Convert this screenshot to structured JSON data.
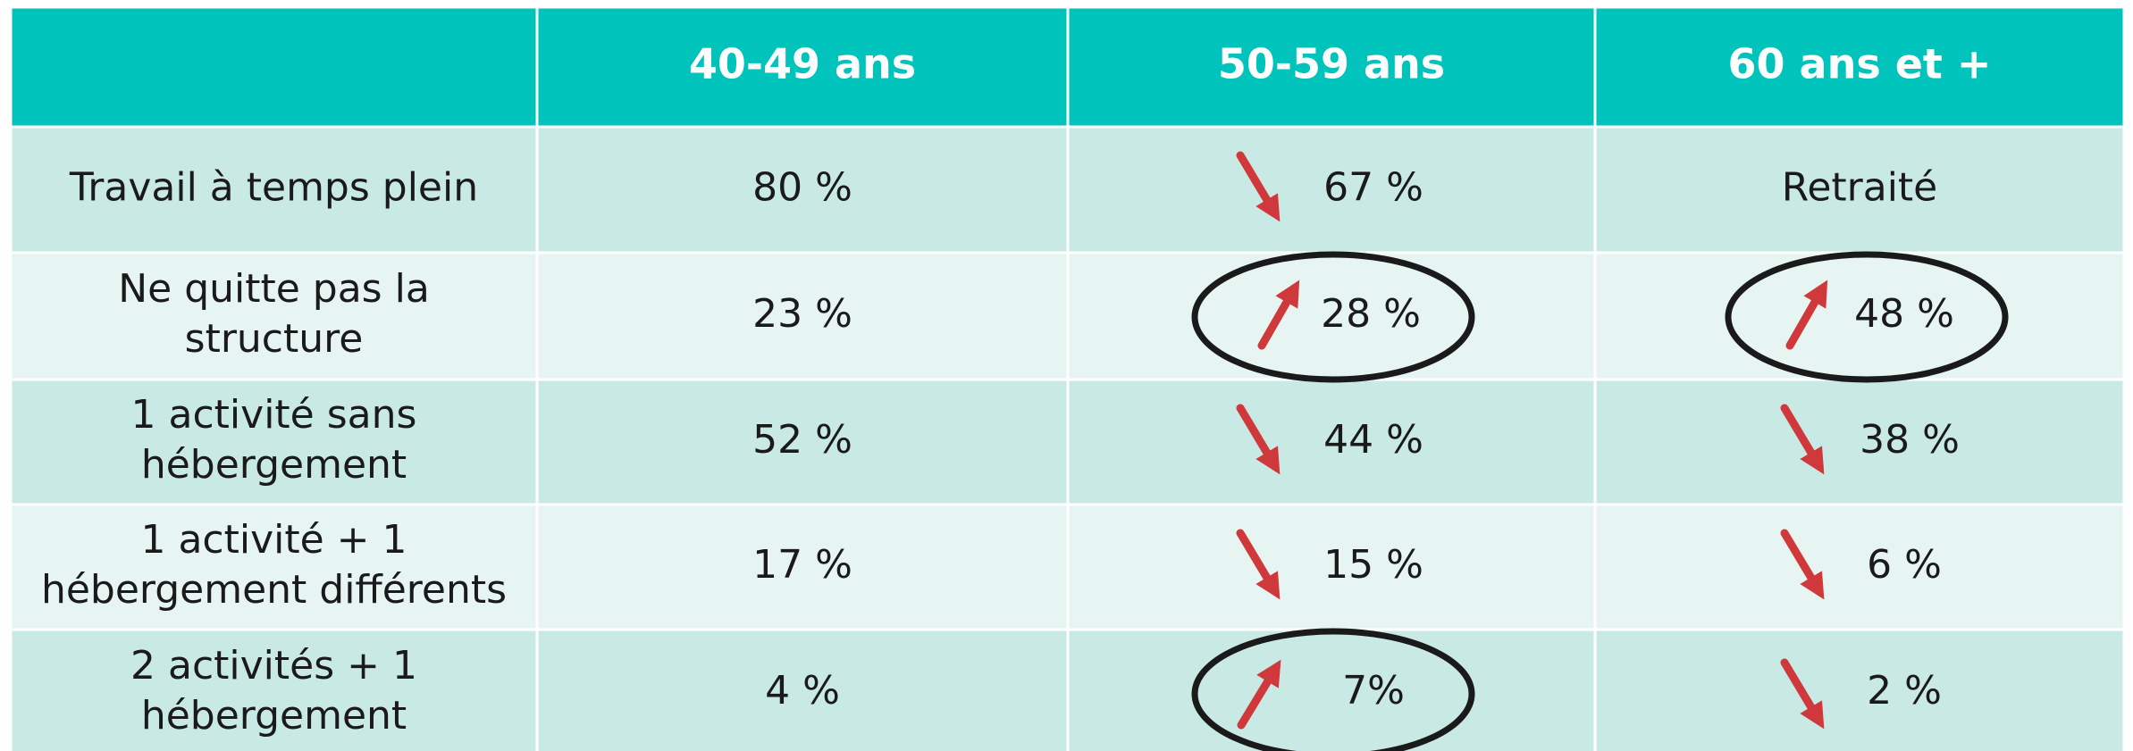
{
  "table": {
    "header": [
      "",
      "40-49 ans",
      "50-59 ans",
      "60 ans et +"
    ],
    "rows": [
      [
        [
          "Travail à temps plein"
        ],
        "80 %",
        "67 %",
        "Retraité"
      ],
      [
        [
          "Ne quitte pas la",
          "structure"
        ],
        "23 %",
        "28 %",
        "48 %"
      ],
      [
        [
          "1 activité sans",
          "hébergement"
        ],
        "52 %",
        "44 %",
        "38 %"
      ],
      [
        [
          "1 activité + 1",
          "hébergement différents"
        ],
        "17 %",
        "15 %",
        "6 %"
      ],
      [
        [
          "2 activités + 1",
          "hébergement"
        ],
        "4 %",
        "7%",
        "2 %"
      ]
    ]
  }
}
